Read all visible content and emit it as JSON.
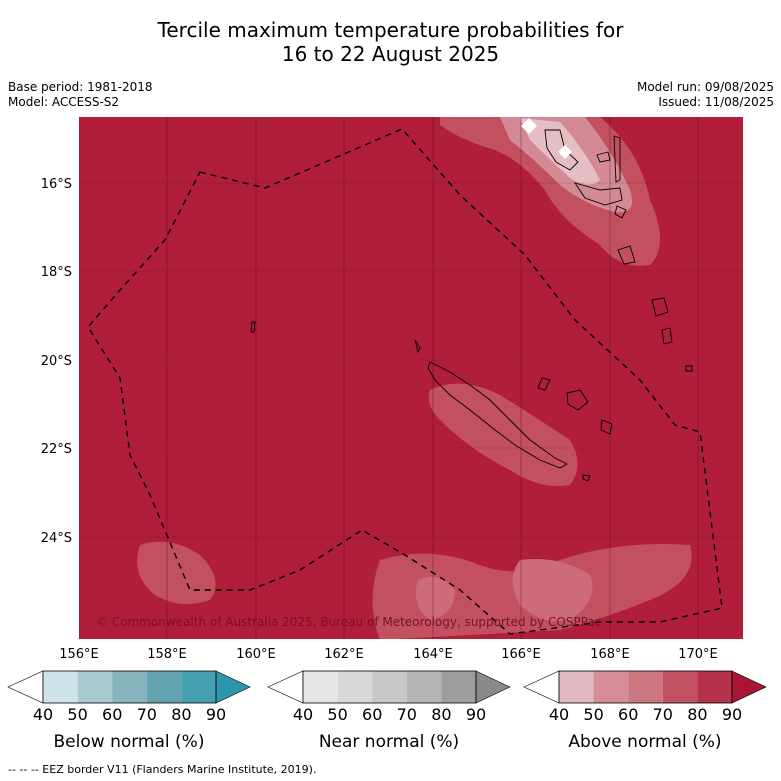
{
  "title": {
    "line1": "Tercile maximum temperature probabilities for",
    "line2": "16 to 22 August 2025"
  },
  "meta": {
    "base_period": "Base period: 1981-2018",
    "model": "Model: ACCESS-S2",
    "model_run": "Model run: 09/08/2025",
    "issued": "Issued: 11/08/2025"
  },
  "map": {
    "background_color": "#b11e3a",
    "copyright": "© Commonwealth of Australia 2025, Bureau of Meteorology, supported by COSPPac",
    "lat_labels": [
      "16°S",
      "18°S",
      "20°S",
      "22°S",
      "24°S"
    ],
    "lon_labels": [
      "156°E",
      "158°E",
      "160°E",
      "162°E",
      "164°E",
      "166°E",
      "168°E",
      "170°E"
    ]
  },
  "colorbars": [
    {
      "title": "Below normal (%)",
      "ticks": [
        "40",
        "50",
        "60",
        "70",
        "80",
        "90"
      ],
      "colors": [
        "#ffffff",
        "#cde3e8",
        "#a9cad1",
        "#86b4bf",
        "#64a3b0",
        "#45a1b2",
        "#2d96ad"
      ]
    },
    {
      "title": "Near normal (%)",
      "ticks": [
        "40",
        "50",
        "60",
        "70",
        "80",
        "90"
      ],
      "colors": [
        "#ffffff",
        "#e6e6e6",
        "#d8d8d8",
        "#c8c8c8",
        "#b4b4b4",
        "#9e9e9e",
        "#8a8a8a"
      ]
    },
    {
      "title": "Above normal (%)",
      "ticks": [
        "40",
        "50",
        "60",
        "70",
        "80",
        "90"
      ],
      "colors": [
        "#ffffff",
        "#e1b8c0",
        "#d68c98",
        "#cc767f",
        "#c25262",
        "#b5324a",
        "#a81535"
      ]
    }
  ],
  "footer": "-- -- -- EEZ border V11 (Flanders Marine Institute, 2019)."
}
